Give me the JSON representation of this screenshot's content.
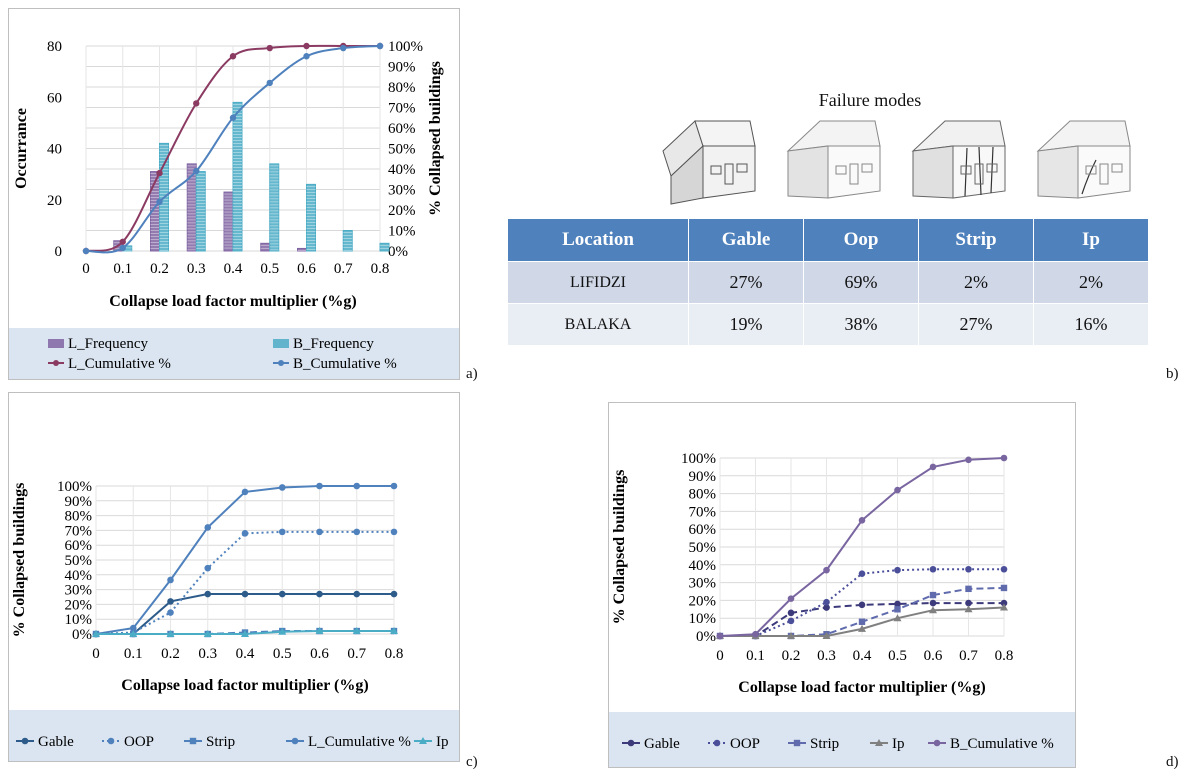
{
  "panel_labels": {
    "a": "a)",
    "b": "b)",
    "c": "c)",
    "d": "d)"
  },
  "failure_table": {
    "title": "Failure modes",
    "headers": [
      "Location",
      "Gable",
      "Oop",
      "Strip",
      "Ip"
    ],
    "rows": [
      [
        "LIFIDZI",
        "27%",
        "69%",
        "2%",
        "2%"
      ],
      [
        "BALAKA",
        "19%",
        "38%",
        "27%",
        "16%"
      ]
    ],
    "header_color": "#4f81bd"
  },
  "chart_data": [
    {
      "id": "a",
      "type": "bar",
      "xlabel": "Collapse load factor multiplier (%g)",
      "ylabel": "Occurrance",
      "y2label": "% Collapsed buildings",
      "categories": [
        "0",
        "0.1",
        "0.2",
        "0.3",
        "0.4",
        "0.5",
        "0.6",
        "0.7",
        "0.8"
      ],
      "ylim": [
        0,
        80
      ],
      "yticks": [
        "0",
        "20",
        "40",
        "60",
        "80"
      ],
      "y2lim": [
        0,
        100
      ],
      "y2ticks": [
        "0%",
        "10%",
        "20%",
        "30%",
        "40%",
        "50%",
        "60%",
        "70%",
        "80%",
        "90%",
        "100%"
      ],
      "series": [
        {
          "name": "L_Frequency",
          "kind": "bar",
          "color": "#8064a2",
          "values": [
            0,
            4,
            31,
            34,
            23,
            3,
            1,
            0,
            0
          ]
        },
        {
          "name": "B_Frequency",
          "kind": "bar",
          "color": "#4bacc6",
          "values": [
            0,
            2,
            42,
            31,
            58,
            34,
            26,
            8,
            3
          ]
        },
        {
          "name": "L_Cumulative %",
          "kind": "line",
          "axis": "right",
          "color": "#8b3a62",
          "values": [
            0,
            4.5,
            38,
            72,
            95,
            99,
            100,
            100,
            100
          ]
        },
        {
          "name": "B_Cumulative %",
          "kind": "line",
          "axis": "right",
          "color": "#4f81bd",
          "values": [
            0,
            1.5,
            24,
            39,
            65,
            82,
            95,
            99,
            100
          ]
        }
      ],
      "legend": "bottom",
      "grid": true
    },
    {
      "id": "c",
      "type": "line",
      "xlabel": "Collapse load factor multiplier (%g)",
      "ylabel": "% Collapsed buildings",
      "categories": [
        "0",
        "0.1",
        "0.2",
        "0.3",
        "0.4",
        "0.5",
        "0.6",
        "0.7",
        "0.8"
      ],
      "ylim": [
        0,
        100
      ],
      "yticks": [
        "0%",
        "10%",
        "20%",
        "30%",
        "40%",
        "50%",
        "60%",
        "70%",
        "80%",
        "90%",
        "100%"
      ],
      "series": [
        {
          "name": "Gable",
          "style": "solid",
          "marker": "circle",
          "color": "#2e5c8a",
          "values": [
            0,
            0,
            22,
            27,
            27,
            27,
            27,
            27,
            27
          ]
        },
        {
          "name": "OOP",
          "style": "dotted",
          "marker": "circle",
          "color": "#4f81bd",
          "values": [
            0,
            1,
            14.5,
            44.5,
            68,
            69,
            69,
            69,
            69
          ]
        },
        {
          "name": "Strip",
          "style": "dashed",
          "marker": "square",
          "color": "#4f81bd",
          "values": [
            0,
            0,
            0,
            0,
            1,
            2,
            2,
            2,
            2
          ]
        },
        {
          "name": "L_Cumulative %",
          "style": "solid",
          "marker": "circle",
          "color": "#4f81bd",
          "values": [
            0,
            4,
            36.5,
            72,
            96,
            99,
            100,
            100,
            100
          ]
        },
        {
          "name": "Ip",
          "style": "solid",
          "marker": "triangle",
          "color": "#4bacc6",
          "values": [
            0,
            0,
            0,
            0,
            0,
            1.5,
            2,
            2,
            2
          ]
        }
      ],
      "legend": "bottom",
      "grid": true
    },
    {
      "id": "d",
      "type": "line",
      "xlabel": "Collapse load factor multiplier (%g)",
      "ylabel": "% Collapsed buildings",
      "categories": [
        "0",
        "0.1",
        "0.2",
        "0.3",
        "0.4",
        "0.5",
        "0.6",
        "0.7",
        "0.8"
      ],
      "ylim": [
        0,
        100
      ],
      "yticks": [
        "0%",
        "10%",
        "20%",
        "30%",
        "40%",
        "50%",
        "60%",
        "70%",
        "80%",
        "90%",
        "100%"
      ],
      "series": [
        {
          "name": "Gable",
          "style": "dashed",
          "marker": "circle",
          "color": "#3c3a7a",
          "values": [
            0,
            0,
            13,
            16,
            17.5,
            18,
            18.5,
            18.5,
            18.5
          ]
        },
        {
          "name": "OOP",
          "style": "dotted",
          "marker": "circle",
          "color": "#4b4f9a",
          "values": [
            0,
            0,
            8.5,
            19,
            35,
            37,
            37.5,
            37.5,
            37.5
          ]
        },
        {
          "name": "Strip",
          "style": "dashed",
          "marker": "square",
          "color": "#5f6bad",
          "values": [
            0,
            0,
            0,
            1,
            8,
            15,
            23,
            26.5,
            27
          ]
        },
        {
          "name": "Ip",
          "style": "solid",
          "marker": "triangle",
          "color": "#808080",
          "values": [
            0,
            0,
            0,
            0,
            4,
            10,
            14.5,
            15,
            16
          ]
        },
        {
          "name": "B_Cumulative %",
          "style": "solid",
          "marker": "circle",
          "color": "#7965a0",
          "values": [
            0,
            1,
            21,
            37,
            65,
            82,
            95,
            99,
            100
          ]
        }
      ],
      "legend": "bottom",
      "grid": true
    }
  ]
}
